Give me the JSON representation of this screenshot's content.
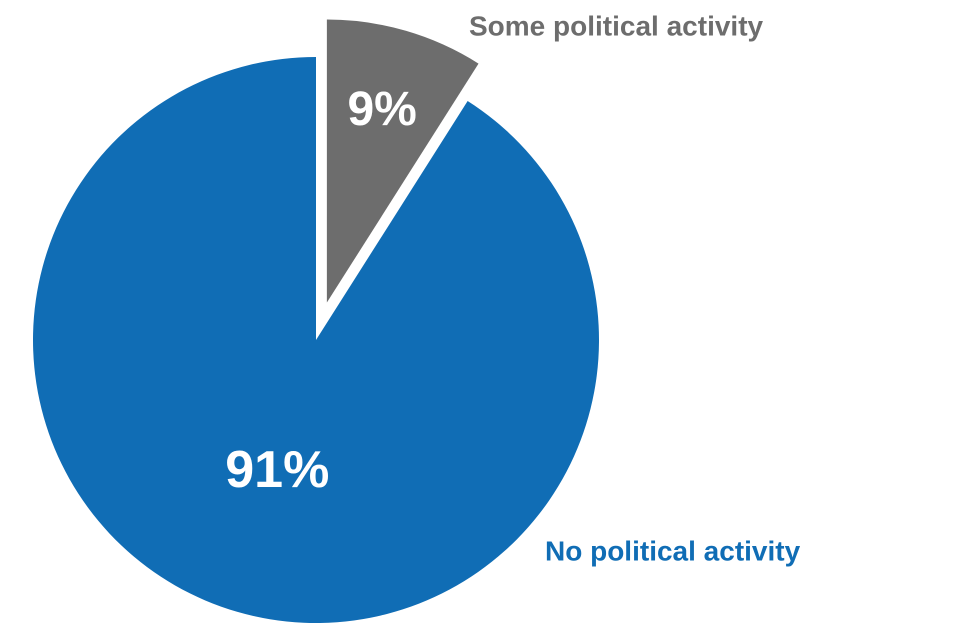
{
  "chart_data": {
    "type": "pie",
    "categories": [
      "Some political activity",
      "No political activity"
    ],
    "values": [
      9,
      91
    ],
    "value_labels": [
      "9%",
      "91%"
    ],
    "colors": [
      "#6d6d6d",
      "#106db5"
    ],
    "explode": [
      true,
      false
    ]
  }
}
